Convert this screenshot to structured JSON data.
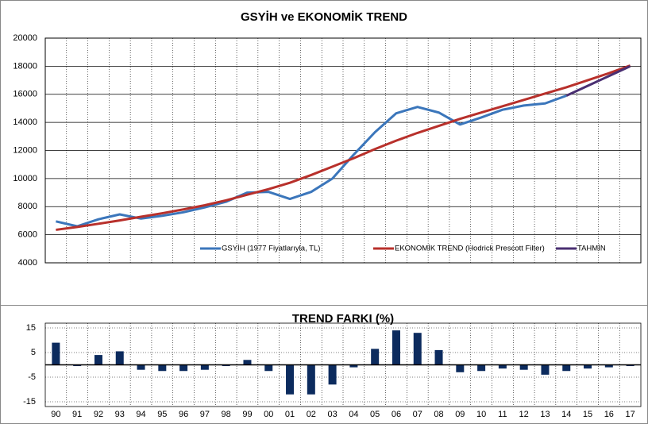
{
  "chart_data": [
    {
      "type": "line",
      "title": "GSYİH ve EKONOMİK TREND",
      "ylim": [
        4000,
        20000
      ],
      "yticks": [
        4000,
        6000,
        8000,
        10000,
        12000,
        14000,
        16000,
        18000,
        20000
      ],
      "grid": true,
      "legend": "bottom",
      "series": [
        {
          "name": "GSYİH (1977 Fiyatlarıyla, TL)",
          "color": "#3b76bb",
          "values": [
            6950,
            6600,
            7100,
            7450,
            7150,
            7350,
            7600,
            7950,
            8350,
            9000,
            9050,
            8550,
            9050,
            10000,
            11700,
            13300,
            14650,
            15100,
            14700,
            13850,
            14350,
            14900,
            15200,
            15350,
            15900,
            null,
            null,
            null
          ]
        },
        {
          "name": "EKONOMİK TREND (Hodrick Prescott Filter)",
          "color": "#b8302b",
          "values": [
            6350,
            6550,
            6780,
            7020,
            7280,
            7530,
            7800,
            8100,
            8450,
            8850,
            9250,
            9700,
            10250,
            10850,
            11450,
            12100,
            12700,
            13250,
            13750,
            14250,
            14700,
            15150,
            15600,
            16050,
            16500,
            17000,
            17500,
            18050
          ]
        },
        {
          "name": "TAHMİN",
          "color": "#4a2f72",
          "values": [
            null,
            null,
            null,
            null,
            null,
            null,
            null,
            null,
            null,
            null,
            null,
            null,
            null,
            null,
            null,
            null,
            null,
            null,
            null,
            null,
            null,
            null,
            null,
            null,
            15900,
            16600,
            17300,
            18000
          ]
        }
      ]
    },
    {
      "type": "bar",
      "title": "TREND FARKI (%)",
      "color": "#0c2b5e",
      "categories": [
        "90",
        "91",
        "92",
        "93",
        "94",
        "95",
        "96",
        "97",
        "98",
        "99",
        "00",
        "01",
        "02",
        "03",
        "04",
        "05",
        "06",
        "07",
        "08",
        "09",
        "10",
        "11",
        "12",
        "13",
        "14",
        "15",
        "16",
        "17"
      ],
      "values": [
        9,
        -0.5,
        4,
        5.5,
        -2,
        -2.5,
        -2.5,
        -2,
        -0.5,
        2,
        -2.5,
        -12,
        -12,
        -8,
        -1,
        6.5,
        14,
        13,
        6,
        -3,
        -2.5,
        -1.5,
        -2,
        -4,
        -2.5,
        -1.5,
        -1,
        -0.5
      ],
      "ylim": [
        -15,
        15
      ],
      "yticks": [
        -15,
        -5,
        5,
        15
      ],
      "grid": true
    }
  ]
}
